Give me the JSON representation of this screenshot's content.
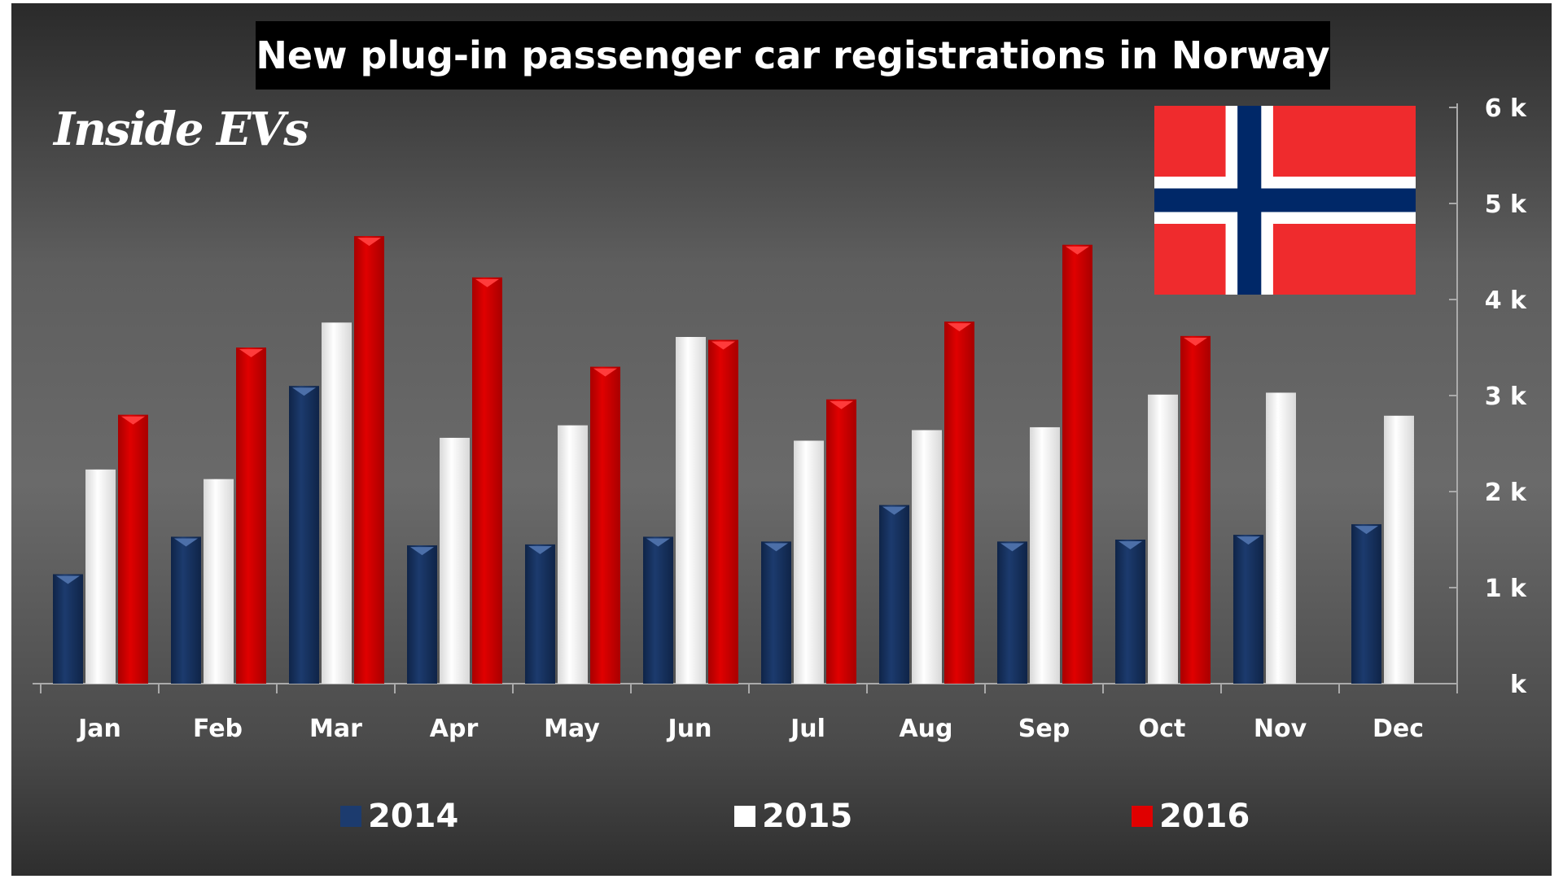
{
  "chart_data": {
    "type": "bar",
    "title": "New plug-in passenger car registrations in Norway",
    "logo_text": "Inside EVs",
    "categories": [
      "Jan",
      "Feb",
      "Mar",
      "Apr",
      "May",
      "Jun",
      "Jul",
      "Aug",
      "Sep",
      "Oct",
      "Nov",
      "Dec"
    ],
    "series": [
      {
        "name": "2014",
        "color": "#1c3b6e",
        "values": [
          1140,
          1530,
          3100,
          1440,
          1450,
          1530,
          1480,
          1860,
          1480,
          1500,
          1550,
          1660
        ]
      },
      {
        "name": "2015",
        "color": "#ffffff",
        "values": [
          2230,
          2130,
          3760,
          2560,
          2690,
          3610,
          2530,
          2640,
          2670,
          3010,
          3030,
          2790
        ]
      },
      {
        "name": "2016",
        "color": "#e00000",
        "values": [
          2800,
          3500,
          4660,
          4230,
          3300,
          3580,
          2960,
          3770,
          4570,
          3620,
          null,
          null
        ]
      }
    ],
    "ylim": [
      0,
      6000
    ],
    "y_ticks": [
      {
        "v": 0,
        "label": "k"
      },
      {
        "v": 1000,
        "label": "1 k"
      },
      {
        "v": 2000,
        "label": "2 k"
      },
      {
        "v": 3000,
        "label": "3 k"
      },
      {
        "v": 4000,
        "label": "4 k"
      },
      {
        "v": 5000,
        "label": "5 k"
      },
      {
        "v": 6000,
        "label": "6 k"
      }
    ],
    "y_axis_side": "right",
    "grid": false,
    "legend_position": "bottom",
    "flag": "norway-flag"
  }
}
